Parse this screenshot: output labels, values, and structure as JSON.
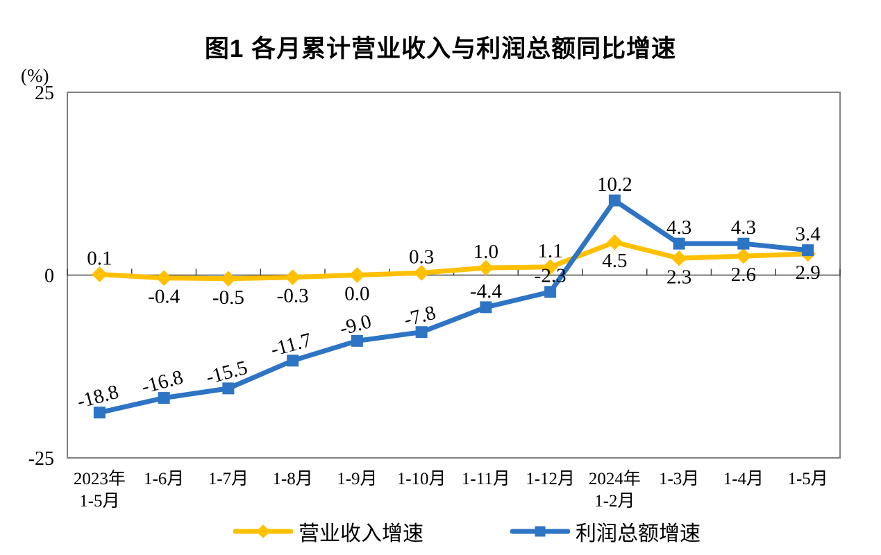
{
  "chart_data": {
    "type": "line",
    "title": "图1  各月累计营业收入与利润总额同比增速",
    "unit_label": "(%)",
    "categories": [
      "2023年\n1-5月",
      "1-6月",
      "1-7月",
      "1-8月",
      "1-9月",
      "1-10月",
      "1-11月",
      "1-12月",
      "2024年\n1-2月",
      "1-3月",
      "1-4月",
      "1-5月"
    ],
    "ylim": [
      -25,
      25
    ],
    "y_ticks": [
      25,
      0,
      -25
    ],
    "grid": "off",
    "legend_position": "bottom",
    "axis_color": "#808080",
    "zero_line_color": "#404040",
    "series": [
      {
        "name": "营业收入增速",
        "color": "#FFC000",
        "marker": "diamond",
        "values": [
          0.1,
          -0.4,
          -0.5,
          -0.3,
          0.0,
          0.3,
          1.0,
          1.1,
          4.5,
          2.3,
          2.6,
          2.9
        ],
        "label_pos": [
          "above",
          "below",
          "below",
          "below",
          "below",
          "above",
          "above",
          "above",
          "below",
          "below",
          "below",
          "below"
        ],
        "label_rotation": [
          0,
          0,
          0,
          0,
          0,
          0,
          0,
          0,
          0,
          0,
          0,
          0
        ]
      },
      {
        "name": "利润总额增速",
        "color": "#2E74C4",
        "marker": "square",
        "values": [
          -18.8,
          -16.8,
          -15.5,
          -11.7,
          -9.0,
          -7.8,
          -4.4,
          -2.3,
          10.2,
          4.3,
          4.3,
          3.4
        ],
        "label_pos": [
          "above",
          "above",
          "above",
          "above",
          "above",
          "above",
          "above",
          "above",
          "above",
          "above",
          "above",
          "above"
        ],
        "label_rotation": [
          -15,
          -15,
          -15,
          -15,
          -15,
          -15,
          0,
          0,
          0,
          0,
          0,
          0
        ]
      }
    ]
  }
}
